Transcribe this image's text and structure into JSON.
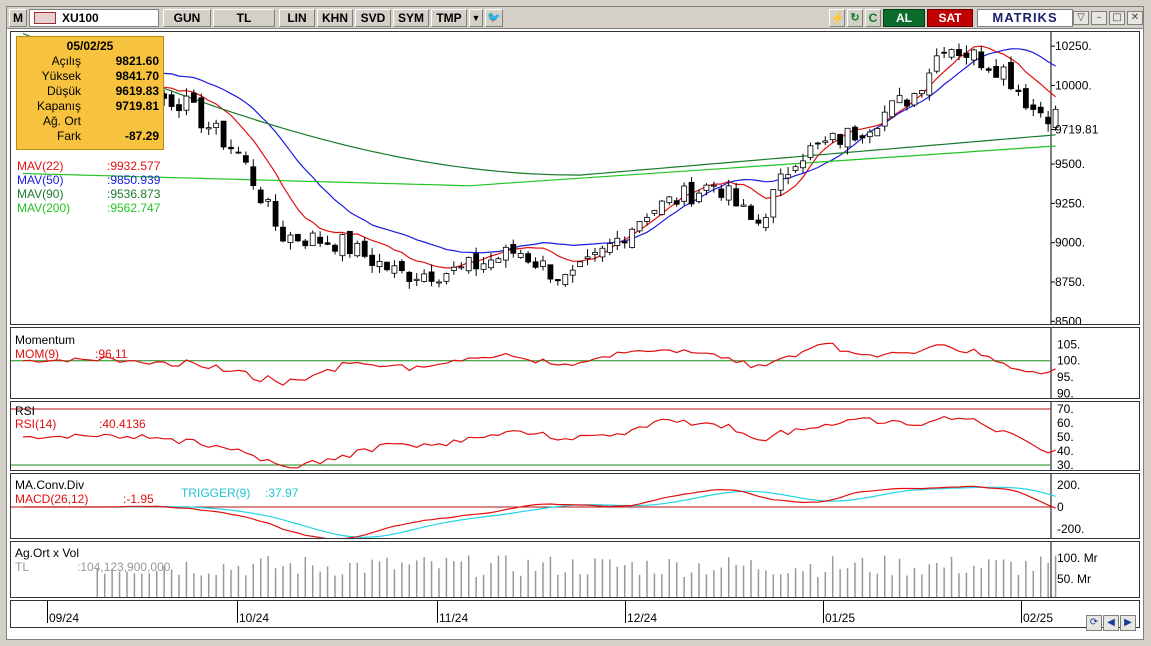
{
  "toolbar": {
    "menu_label": "M",
    "symbol": "XU100",
    "period": "GUN",
    "currency": "TL",
    "scale_lin": "LIN",
    "khn": "KHN",
    "svd": "SVD",
    "sym": "SYM",
    "tmp": "TMP",
    "buy_label": "AL",
    "sell_label": "SAT",
    "brand": "MATRIKS",
    "c_label": "C",
    "icons": [
      "lightning-icon",
      "refresh-icon",
      "dropdown-icon",
      "twitter-icon"
    ]
  },
  "info_box": {
    "date": "05/02/25",
    "rows": [
      {
        "key": "Açılış",
        "value": "9821.60"
      },
      {
        "key": "Yüksek",
        "value": "9841.70"
      },
      {
        "key": "Düşük",
        "value": "9619.83"
      },
      {
        "key": "Kapanış",
        "value": "9719.81"
      },
      {
        "key": "Ağ. Ort",
        "value": ""
      },
      {
        "key": "Fark",
        "value": "-87.29"
      }
    ]
  },
  "legend": [
    {
      "name": "MAV(22)",
      "value": ":9932.577",
      "color": "#e01010"
    },
    {
      "name": "MAV(50)",
      "value": ":9850.939",
      "color": "#1a1adc"
    },
    {
      "name": "MAV(90)",
      "value": ":9536.873",
      "color": "#1a7a2a"
    },
    {
      "name": "MAV(200)",
      "value": ":9562.747",
      "color": "#22c422"
    }
  ],
  "price_axis": [
    "10250.",
    "10000.",
    "9719.81",
    "9500.",
    "9250.",
    "9000.",
    "8750.",
    "8500."
  ],
  "momentum": {
    "title": "Momentum",
    "label": "MOM(9)",
    "value": ":96.11",
    "axis": [
      "105.",
      "100.",
      "95.",
      "90."
    ]
  },
  "rsi": {
    "title": "RSI",
    "label": "RSI(14)",
    "value": ":40.4136",
    "axis": [
      "70.",
      "60.",
      "50.",
      "40.",
      "30."
    ]
  },
  "macd": {
    "title": "MA.Conv.Div",
    "label": "MACD(26,12)",
    "value": ":-1.95",
    "trigger_label": "TRIGGER(9)",
    "trigger_value": ":37.97",
    "axis": [
      "200.",
      "0",
      "-200."
    ]
  },
  "volume": {
    "title": "Ag.Ort x Vol",
    "label": "TL",
    "value": ":104,123,900,000",
    "axis": [
      "100. Mr",
      "50. Mr"
    ]
  },
  "x_axis": [
    "09/24",
    "10/24",
    "11/24",
    "12/24",
    "01/25",
    "02/25"
  ],
  "colors": {
    "up": "#ffffff",
    "down": "#000000",
    "mav22": "#e01010",
    "mav50": "#1a1adc",
    "mav90": "#1a7a2a",
    "mav200": "#22c422",
    "macd": "#e01010",
    "trigger": "#22d4e4",
    "guide": "#1a8a1a",
    "rsi_guide": "#b01010"
  },
  "chart_data": {
    "type": "candlestick",
    "y_range": [
      8500,
      10350
    ],
    "last_bar": {
      "open": 9821.6,
      "high": 9841.7,
      "low": 9619.83,
      "close": 9719.81
    },
    "moving_averages": {
      "MAV(22)": 9932.577,
      "MAV(50)": 9850.939,
      "MAV(90)": 9536.873,
      "MAV(200)": 9562.747
    },
    "momentum_last": 96.11,
    "rsi_last": 40.4136,
    "macd_last": -1.95,
    "trigger_last": 37.97,
    "volume_last": 104123900000
  }
}
